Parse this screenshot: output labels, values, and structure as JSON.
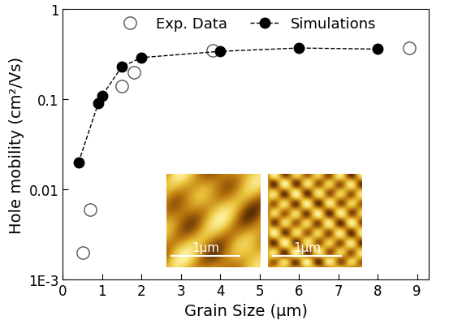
{
  "chart_data": {
    "type": "scatter",
    "x_label": "Grain Size (μm)",
    "y_label": "Hole mobility (cm²/Vs)",
    "log": "y",
    "legend": "upper center",
    "xlim": [
      0,
      9.3
    ],
    "xticks": [
      0,
      1,
      2,
      3,
      4,
      5,
      6,
      7,
      8,
      9
    ],
    "ylim": [
      0.001,
      1
    ],
    "yticks": [
      {
        "value": 0.001,
        "label": "1E-3"
      },
      0.01,
      0.1,
      1
    ],
    "series": [
      {
        "name": "Exp. Data",
        "type": "scatter",
        "color": "#ffffff",
        "marker": "o",
        "line_style": "none",
        "x": [
          0.5,
          0.7,
          1.5,
          1.8,
          3.8,
          8.8
        ],
        "values": [
          0.002,
          0.006,
          0.14,
          0.2,
          0.35,
          0.37
        ]
      },
      {
        "name": "Simulations",
        "type": "line",
        "color": "#000000",
        "marker": "o",
        "line_style": "dashed",
        "x": [
          0.4,
          0.9,
          1.0,
          1.5,
          2.0,
          4.0,
          6.0,
          8.0
        ],
        "values": [
          0.02,
          0.09,
          0.11,
          0.23,
          0.29,
          0.34,
          0.37,
          0.36
        ]
      }
    ],
    "annotations": [
      "1μm",
      "1μm"
    ]
  }
}
